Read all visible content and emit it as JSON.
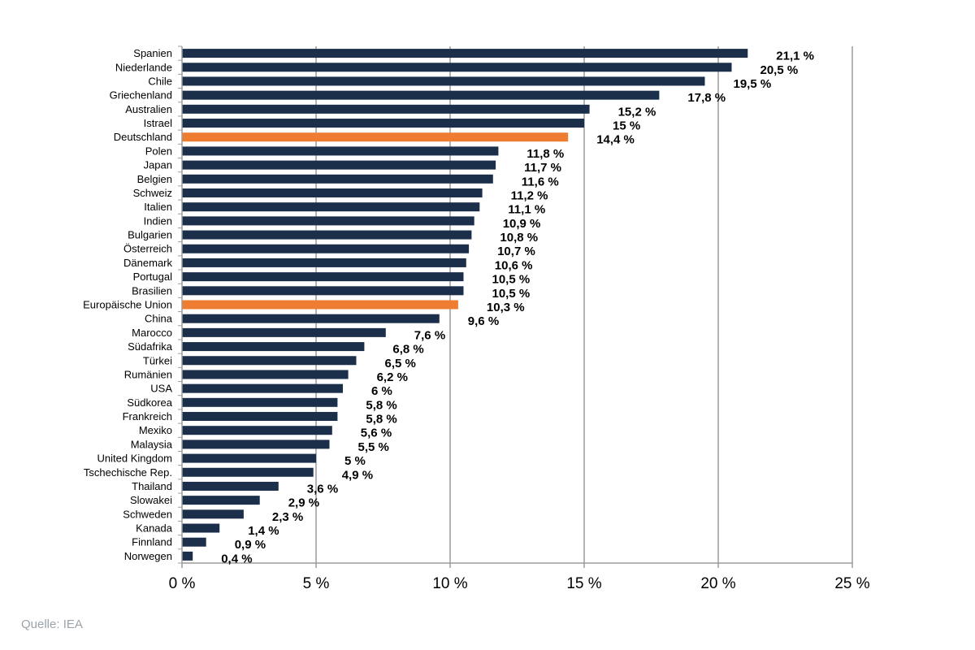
{
  "chart_data": {
    "type": "bar",
    "orientation": "horizontal",
    "categories": [
      "Spanien",
      "Niederlande",
      "Chile",
      "Griechenland",
      "Australien",
      "Istrael",
      "Deutschland",
      "Polen",
      "Japan",
      "Belgien",
      "Schweiz",
      "Italien",
      "Indien",
      "Bulgarien",
      "Österreich",
      "Dänemark",
      "Portugal",
      "Brasilien",
      "Europäische Union",
      "China",
      "Marocco",
      "Südafrika",
      "Türkei",
      "Rumänien",
      "USA",
      "Südkorea",
      "Frankreich",
      "Mexiko",
      "Malaysia",
      "United Kingdom",
      "Tschechische Rep.",
      "Thailand",
      "Slowakei",
      "Schweden",
      "Kanada",
      "Finnland",
      "Norwegen"
    ],
    "values": [
      21.1,
      20.5,
      19.5,
      17.8,
      15.2,
      15,
      14.4,
      11.8,
      11.7,
      11.6,
      11.2,
      11.1,
      10.9,
      10.8,
      10.7,
      10.6,
      10.5,
      10.5,
      10.3,
      9.6,
      7.6,
      6.8,
      6.5,
      6.2,
      6,
      5.8,
      5.8,
      5.6,
      5.5,
      5,
      4.9,
      3.6,
      2.9,
      2.3,
      1.4,
      0.9,
      0.4
    ],
    "value_labels": [
      "21,1 %",
      "20,5 %",
      "19,5 %",
      "17,8 %",
      "15,2 %",
      "15 %",
      "14,4 %",
      "11,8 %",
      "11,7 %",
      "11,6 %",
      "11,2 %",
      "11,1 %",
      "10,9 %",
      "10,8 %",
      "10,7 %",
      "10,6 %",
      "10,5 %",
      "10,5 %",
      "10,3 %",
      "9,6 %",
      "7,6 %",
      "6,8 %",
      "6,5 %",
      "6,2 %",
      "6 %",
      "5,8 %",
      "5,8 %",
      "5,6 %",
      "5,5 %",
      "5 %",
      "4,9 %",
      "3,6 %",
      "2,9 %",
      "2,3 %",
      "1,4 %",
      "0,9 %",
      "0,4 %"
    ],
    "highlighted": [
      "Deutschland",
      "Europäische Union"
    ],
    "xlim": [
      0,
      25
    ],
    "x_ticks": [
      0,
      5,
      10,
      15,
      20,
      25
    ],
    "x_tick_labels": [
      "0 %",
      "5 %",
      "10 %",
      "15 %",
      "20 %",
      "25 %"
    ],
    "grid": true,
    "colors": {
      "bar": "#1b2f4b",
      "highlight": "#ee7d31",
      "grid": "#9b9b9b"
    }
  },
  "footer": {
    "source": "Quelle: IEA"
  }
}
